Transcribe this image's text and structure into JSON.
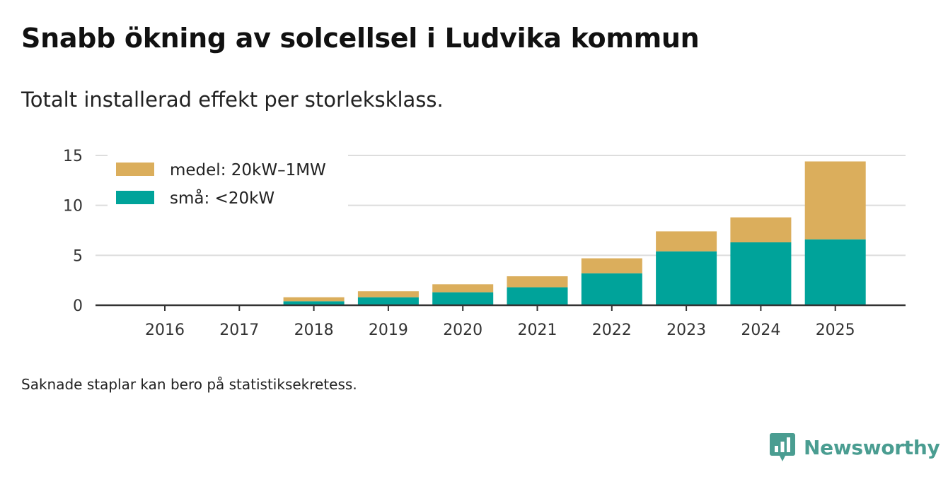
{
  "title": "Snabb ökning av solcellsel i Ludvika kommun",
  "subtitle": "Totalt installerad effekt per storleksklass.",
  "footnote": "Saknade staplar kan bero på statistiksekretess.",
  "brand": {
    "name": "Newsworthy",
    "icon": "newsworthy-logo-icon"
  },
  "colors": {
    "small": "#00a39a",
    "medium": "#dbae5c",
    "grid": "#dddddd",
    "axis": "#333333"
  },
  "chart_data": {
    "type": "bar",
    "stacked": true,
    "categories": [
      "2016",
      "2017",
      "2018",
      "2019",
      "2020",
      "2021",
      "2022",
      "2023",
      "2024",
      "2025"
    ],
    "series": [
      {
        "name": "små: <20kW",
        "color": "#00a39a",
        "values": [
          0,
          0,
          0.4,
          0.8,
          1.3,
          1.8,
          3.2,
          5.4,
          6.3,
          6.6
        ]
      },
      {
        "name": "medel: 20kW–1MW",
        "color": "#dbae5c",
        "values": [
          0,
          0,
          0.4,
          0.6,
          0.8,
          1.1,
          1.5,
          2.0,
          2.5,
          7.8
        ]
      }
    ],
    "legend": [
      {
        "label": "medel: 20kW–1MW",
        "color": "#dbae5c"
      },
      {
        "label": "små: <20kW",
        "color": "#00a39a"
      }
    ],
    "yticks": [
      "0",
      "5",
      "10",
      "15"
    ],
    "ylim": [
      0,
      15
    ],
    "grid": true,
    "legend_position": "top-left",
    "xlabel": "",
    "ylabel": ""
  }
}
